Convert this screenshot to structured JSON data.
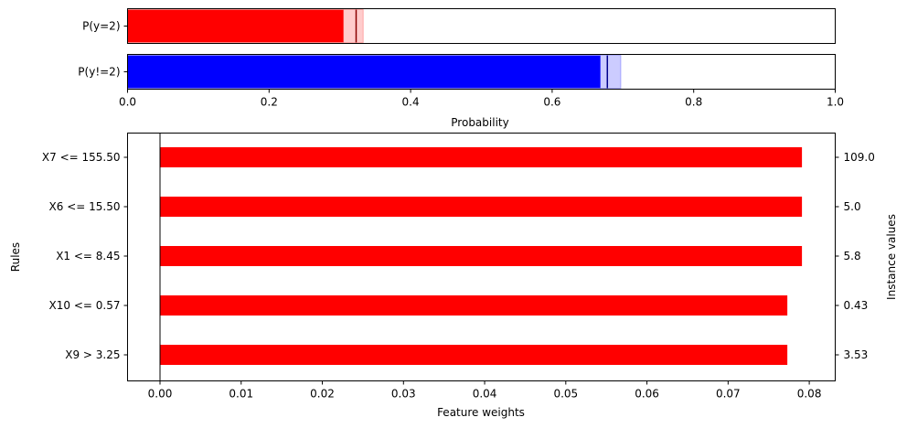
{
  "chart_data": [
    {
      "type": "bar",
      "orientation": "horizontal",
      "xlabel": "Probability",
      "xlim": [
        0,
        1
      ],
      "xticks": [
        "0.0",
        "0.2",
        "0.4",
        "0.6",
        "0.8",
        "1.0"
      ],
      "categories": [
        "P(y=2)",
        "P(y!=2)"
      ],
      "values": [
        0.305,
        0.668
      ],
      "interval_low": [
        0.305,
        0.668
      ],
      "interval_high": [
        0.333,
        0.697
      ],
      "marker": [
        0.323,
        0.678
      ],
      "colors": [
        "#ff0000",
        "#0000ff"
      ],
      "grid": false
    },
    {
      "type": "bar",
      "orientation": "horizontal",
      "xlabel": "Feature weights",
      "ylabel": "Rules",
      "y2label": "Instance values",
      "xlim": [
        -0.004,
        0.0832
      ],
      "xticks": [
        "0.00",
        "0.01",
        "0.02",
        "0.03",
        "0.04",
        "0.05",
        "0.06",
        "0.07",
        "0.08"
      ],
      "categories": [
        "X7 <= 155.50",
        "X6 <= 15.50",
        "X1 <= 8.45",
        "X10 <= 0.57",
        "X9 > 3.25"
      ],
      "values": [
        0.0791,
        0.0791,
        0.0791,
        0.0773,
        0.0773
      ],
      "instance_values": [
        "109.0",
        "5.0",
        "5.8",
        "0.43",
        "3.53"
      ],
      "color": "#ff0000",
      "grid": false
    }
  ]
}
